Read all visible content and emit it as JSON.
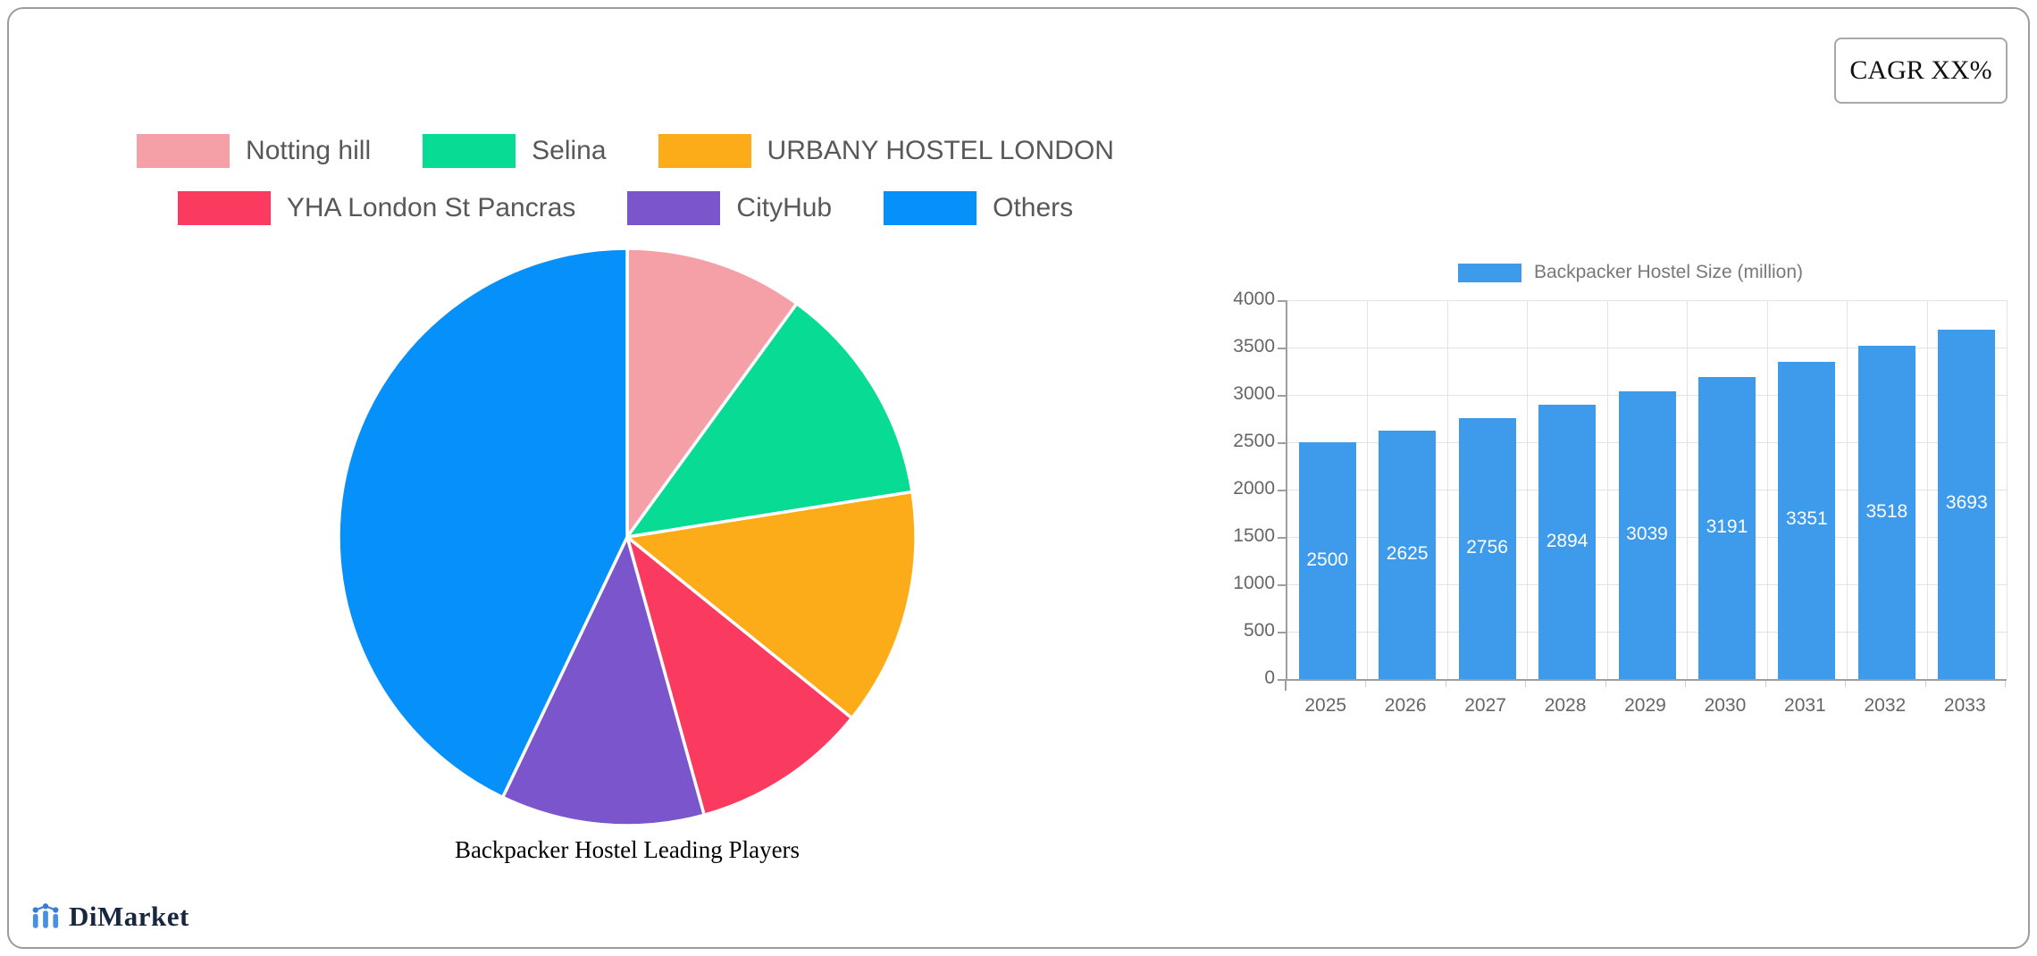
{
  "card": {
    "cagr_label": "CAGR XX%"
  },
  "brand": {
    "name": "DiMarket",
    "icon_color": "#4a90e2",
    "dot_color": "#3a7bd5",
    "text_color": "#18263e"
  },
  "chart_data": [
    {
      "type": "pie",
      "title": "Backpacker Hostel Leading Players",
      "labels": [
        "Notting hill",
        "Selina",
        "URBANY HOSTEL LONDON",
        "YHA London St Pancras",
        "CityHub",
        "Others"
      ],
      "values": [
        10.0,
        12.5,
        13.3,
        9.9,
        11.4,
        42.9
      ],
      "colors": [
        "#f5a0a6",
        "#07db94",
        "#fbac18",
        "#fa3b5f",
        "#7a55cc",
        "#0590fa"
      ],
      "legend_rows": [
        [
          0,
          1,
          2
        ],
        [
          3,
          4,
          5
        ]
      ],
      "legend_position": "top",
      "start_angle_deg": -90,
      "direction": "clockwise",
      "slice_border_color": "#ffffff"
    },
    {
      "type": "bar",
      "legend": "Backpacker Hostel Size (million)",
      "categories": [
        "2025",
        "2026",
        "2027",
        "2028",
        "2029",
        "2030",
        "2031",
        "2032",
        "2033"
      ],
      "values": [
        2500,
        2625,
        2756,
        2894,
        3039,
        3191,
        3351,
        3518,
        3693
      ],
      "ylim": [
        0,
        4000
      ],
      "ytick_step": 500,
      "bar_color": "#3e9aeb",
      "value_label_color": "#ffffff",
      "grid": true,
      "legend_position": "top"
    }
  ]
}
